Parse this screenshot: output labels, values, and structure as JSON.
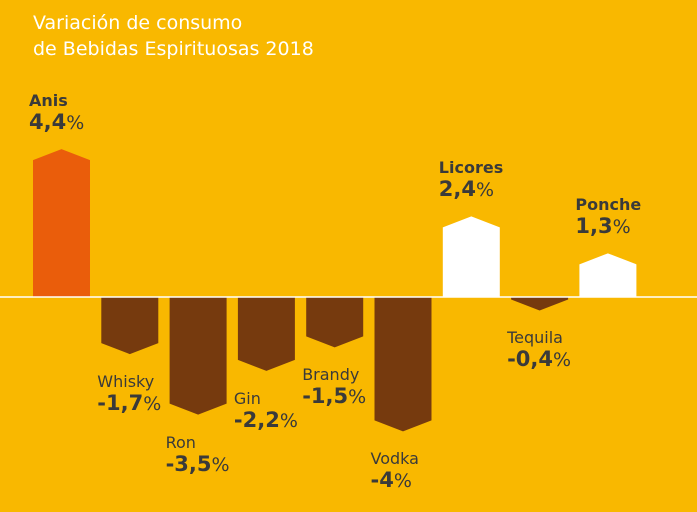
{
  "title_lines": [
    "Variación de consumo",
    "de Bebidas Espirituosas 2018"
  ],
  "colors": {
    "background": "#F9B800",
    "highlight": "#EA5D0B",
    "positive": "#FFFFFF",
    "negative": "#763A0E",
    "baseline": "#FFFFFF",
    "text": "#3A3A3A"
  },
  "chart_data": {
    "type": "bar",
    "categories": [
      "Anis",
      "Whisky",
      "Ron",
      "Gin",
      "Brandy",
      "Vodka",
      "Licores",
      "Tequila",
      "Ponche"
    ],
    "values": [
      4.4,
      -1.7,
      -3.5,
      -2.2,
      -1.5,
      -4,
      2.4,
      -0.4,
      1.3
    ],
    "value_labels": [
      "4,4",
      "-1,7",
      "-3,5",
      "-2,2",
      "-1,5",
      "-4",
      "2,4",
      "-0,4",
      "1,3"
    ],
    "unit": "%",
    "ylim": [
      -4.5,
      4.5
    ],
    "grid": false,
    "legend": "none",
    "axis_visible": false
  }
}
